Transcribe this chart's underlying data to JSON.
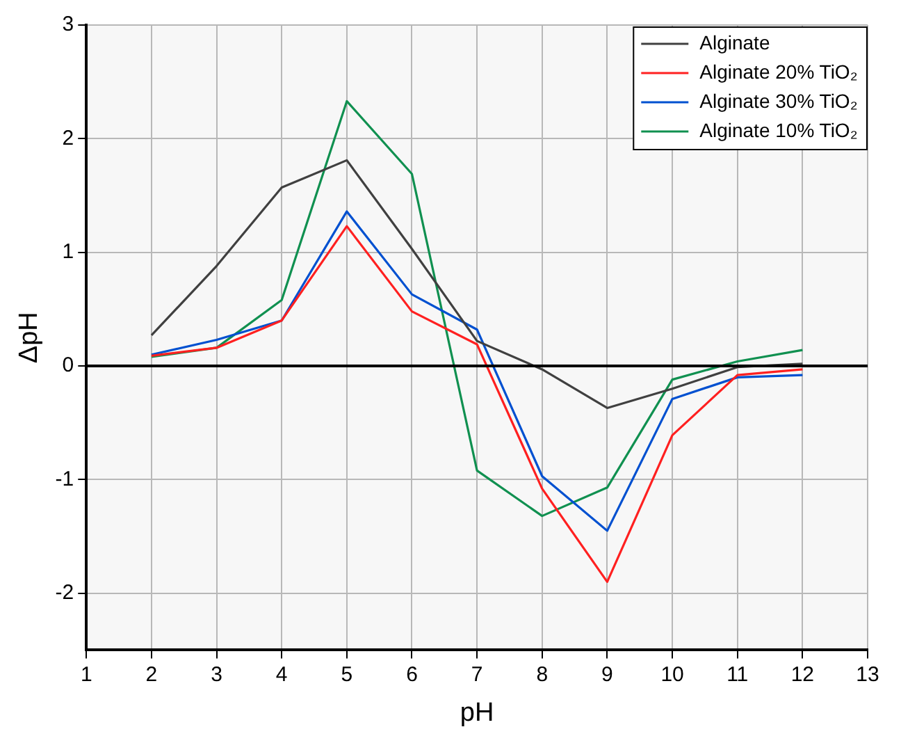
{
  "chart_data": {
    "type": "line",
    "xlabel": "pH",
    "ylabel": "ΔpH",
    "x": [
      2,
      3,
      4,
      5,
      6,
      7,
      8,
      9,
      10,
      11,
      12
    ],
    "xlim": [
      1,
      13
    ],
    "xticks": [
      1,
      2,
      3,
      4,
      5,
      6,
      7,
      8,
      9,
      10,
      11,
      12,
      13
    ],
    "ylim": [
      -2.5,
      3
    ],
    "yticks": [
      -2,
      -1,
      0,
      1,
      2,
      3
    ],
    "series": [
      {
        "name": "Alginate",
        "color": "#404040",
        "values": [
          0.27,
          0.88,
          1.57,
          1.81,
          1.03,
          0.22,
          -0.03,
          -0.37,
          -0.2,
          -0.01,
          0.02
        ]
      },
      {
        "name": "Alginate 20% TiO₂",
        "color": "#ff2020",
        "values": [
          0.09,
          0.16,
          0.4,
          1.23,
          0.48,
          0.19,
          -1.08,
          -1.9,
          -0.61,
          -0.08,
          -0.03
        ]
      },
      {
        "name": "Alginate 30% TiO₂",
        "color": "#0050d0",
        "values": [
          0.1,
          0.23,
          0.4,
          1.36,
          0.63,
          0.32,
          -0.97,
          -1.45,
          -0.29,
          -0.1,
          -0.08
        ]
      },
      {
        "name": "Alginate 10% TiO₂",
        "color": "#109050",
        "values": [
          0.08,
          0.16,
          0.58,
          2.33,
          1.69,
          -0.92,
          -1.32,
          -1.07,
          -0.12,
          0.04,
          0.14
        ]
      }
    ],
    "ref_lines": [
      {
        "axis": "y",
        "value": 0,
        "color": "#000000"
      }
    ],
    "grid": true,
    "legend": "top right",
    "marker": "none",
    "line_style": "solid"
  }
}
